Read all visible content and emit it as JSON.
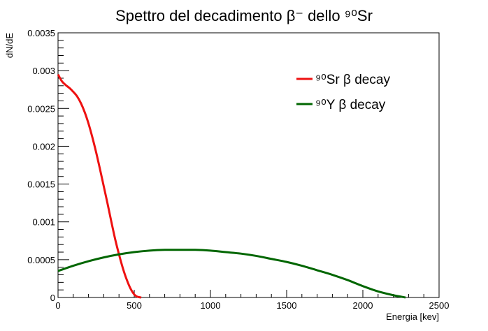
{
  "chart_data": {
    "type": "line",
    "title": "Spettro del decadimento β⁻ dello ⁹⁰Sr",
    "xlabel": "Energia [kev]",
    "ylabel": "dN/dE",
    "xlim": [
      0,
      2500
    ],
    "ylim": [
      0,
      0.0035
    ],
    "x_ticks": [
      0,
      500,
      1000,
      1500,
      2000,
      2500
    ],
    "x_tick_labels": [
      "0",
      "500",
      "1000",
      "1500",
      "2000",
      "2500"
    ],
    "y_ticks": [
      0,
      0.0005,
      0.001,
      0.0015,
      0.002,
      0.0025,
      0.003,
      0.0035
    ],
    "y_tick_labels": [
      "0",
      "0.0005",
      "0.001",
      "0.0015",
      "0.002",
      "0.0025",
      "0.003",
      "0.0035"
    ],
    "grid": false,
    "legend_position": "top-right",
    "series": [
      {
        "name": "⁹⁰Sr β decay",
        "color": "#ee1111",
        "x": [
          0,
          25,
          50,
          75,
          100,
          125,
          150,
          175,
          200,
          225,
          250,
          275,
          300,
          325,
          350,
          375,
          400,
          425,
          450,
          475,
          500,
          520,
          546
        ],
        "y": [
          0.00295,
          0.00286,
          0.00281,
          0.00277,
          0.00272,
          0.00266,
          0.00257,
          0.00245,
          0.0023,
          0.00212,
          0.00192,
          0.0017,
          0.00147,
          0.00124,
          0.001,
          0.00077,
          0.00057,
          0.00039,
          0.00024,
          0.00012,
          4e-05,
          1e-05,
          0
        ]
      },
      {
        "name": "⁹⁰Y β decay",
        "color": "#006600",
        "x": [
          0,
          100,
          200,
          300,
          400,
          500,
          600,
          700,
          800,
          900,
          1000,
          1100,
          1200,
          1300,
          1400,
          1500,
          1600,
          1700,
          1800,
          1900,
          2000,
          2100,
          2200,
          2280
        ],
        "y": [
          0.00035,
          0.00042,
          0.00048,
          0.00053,
          0.00057,
          0.0006,
          0.00062,
          0.00063,
          0.00063,
          0.00063,
          0.00062,
          0.0006,
          0.00058,
          0.00055,
          0.00051,
          0.00047,
          0.00042,
          0.00036,
          0.0003,
          0.00023,
          0.00015,
          8e-05,
          3e-05,
          0
        ]
      }
    ]
  }
}
